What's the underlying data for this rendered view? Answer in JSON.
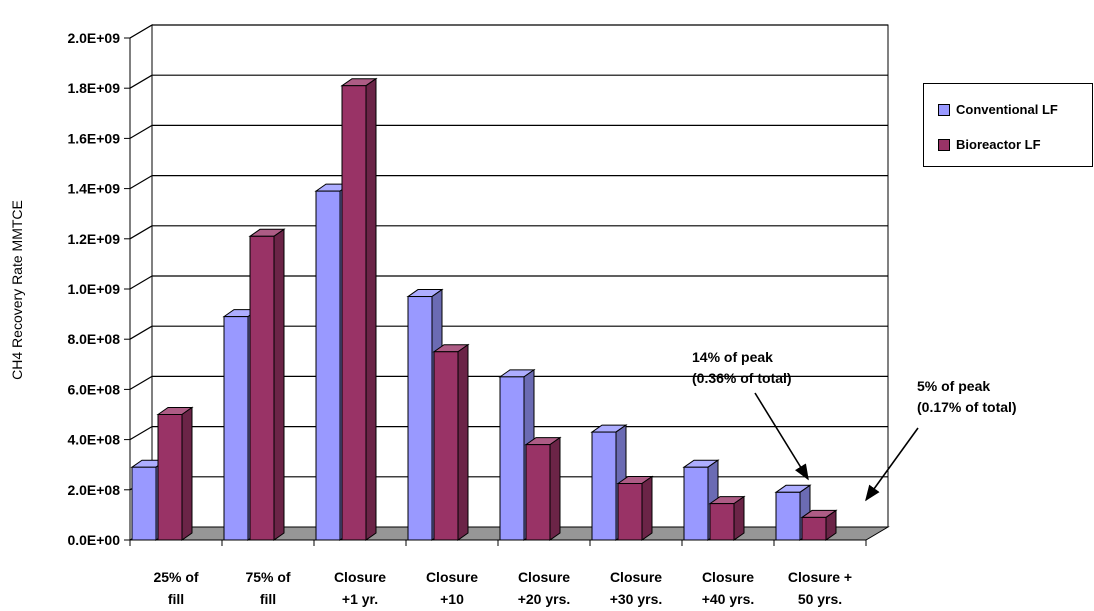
{
  "chart_data": {
    "type": "bar",
    "title": "",
    "xlabel": "",
    "ylabel": "CH4 Recovery Rate MMTCE",
    "ylim": [
      0,
      2000000000
    ],
    "yticks": [
      "0.0E+00",
      "2.0E+08",
      "4.0E+08",
      "6.0E+08",
      "8.0E+08",
      "1.0E+09",
      "1.2E+09",
      "1.4E+09",
      "1.6E+09",
      "1.8E+09",
      "2.0E+09"
    ],
    "categories": [
      [
        "25% of",
        "fill"
      ],
      [
        "75% of",
        "fill"
      ],
      [
        "Closure",
        "+1 yr."
      ],
      [
        "Closure",
        "+10"
      ],
      [
        "Closure",
        "+20 yrs."
      ],
      [
        "Closure",
        "+30 yrs."
      ],
      [
        "Closure",
        "+40 yrs."
      ],
      [
        "Closure +",
        "50 yrs."
      ]
    ],
    "series": [
      {
        "name": "Conventional LF",
        "color": "#9999ff",
        "values": [
          290000000,
          890000000,
          1390000000,
          970000000,
          650000000,
          430000000,
          290000000,
          190000000
        ]
      },
      {
        "name": "Bioreactor LF",
        "color": "#993366",
        "values": [
          500000000,
          1210000000,
          1810000000,
          750000000,
          380000000,
          225000000,
          145000000,
          90000000
        ]
      }
    ],
    "legend": {
      "position": "right"
    },
    "grid": true,
    "annotations": [
      {
        "lines": [
          "14% of peak",
          "(0.36% of total)"
        ]
      },
      {
        "lines": [
          "5% of peak",
          "(0.17% of total)"
        ]
      }
    ]
  }
}
